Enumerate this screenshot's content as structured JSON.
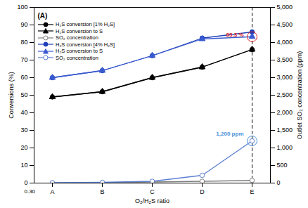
{
  "chart_data": {
    "type": "line",
    "title": "(A)",
    "x_label": "O₂/H₂S ratio",
    "y_label": "Conversions (%)",
    "y2_label": "Outlet SO₂ concentration (ppm)",
    "categories": [
      "A",
      "B",
      "C",
      "D",
      "E"
    ],
    "ylim": [
      0,
      100
    ],
    "yticks": [
      0,
      10,
      20,
      30,
      40,
      50,
      60,
      70,
      80,
      90,
      100
    ],
    "y2lim": [
      0,
      5000
    ],
    "y2ticks": [
      0,
      500,
      1000,
      1500,
      2000,
      2500,
      3000,
      3500,
      4000,
      4500,
      5000
    ],
    "legend": "top-left",
    "series": [
      {
        "name": "H₂S conversion [1% H₂S]",
        "color": "#000000",
        "marker": "circle",
        "line_style": "solid",
        "values": [
          49,
          52,
          60,
          66,
          76
        ]
      },
      {
        "name": "H₂S conversion to S",
        "color": "#000000",
        "marker": "triangle",
        "line_style": "solid",
        "values": [
          49,
          52,
          60,
          66,
          76
        ]
      },
      {
        "name": "SO₂ concentration",
        "color": "#808080",
        "marker": "open_circle",
        "line_style": "solid",
        "axis": "y2",
        "values": [
          5,
          10,
          30,
          50,
          75
        ]
      },
      {
        "name": "H₂S conversion [4% H₂S]",
        "color": "#1f3fb8",
        "marker": "circle",
        "line_style": "solid",
        "values": [
          60,
          64,
          72.5,
          82.5,
          86
        ]
      },
      {
        "name": "H₂S conversion to S",
        "color": "#3a5bd0",
        "marker": "triangle",
        "line_style": "solid",
        "values": [
          60,
          64,
          72.5,
          82,
          83.3
        ]
      },
      {
        "name": "SO₂ concentration",
        "color": "#5b7fd0",
        "marker": "open_circle",
        "line_style": "solid",
        "axis": "y2",
        "values": [
          10,
          20,
          50,
          220,
          1200
        ]
      }
    ],
    "annotations": [
      {
        "text": "83.3 %",
        "x": "E",
        "y": 83.3,
        "color": "#e02020"
      },
      {
        "text": "1,200 ppm",
        "x": "E",
        "y": 1200,
        "axis": "y2",
        "color": "#4a8fd8"
      },
      {
        "text": "0.30"
      }
    ]
  }
}
